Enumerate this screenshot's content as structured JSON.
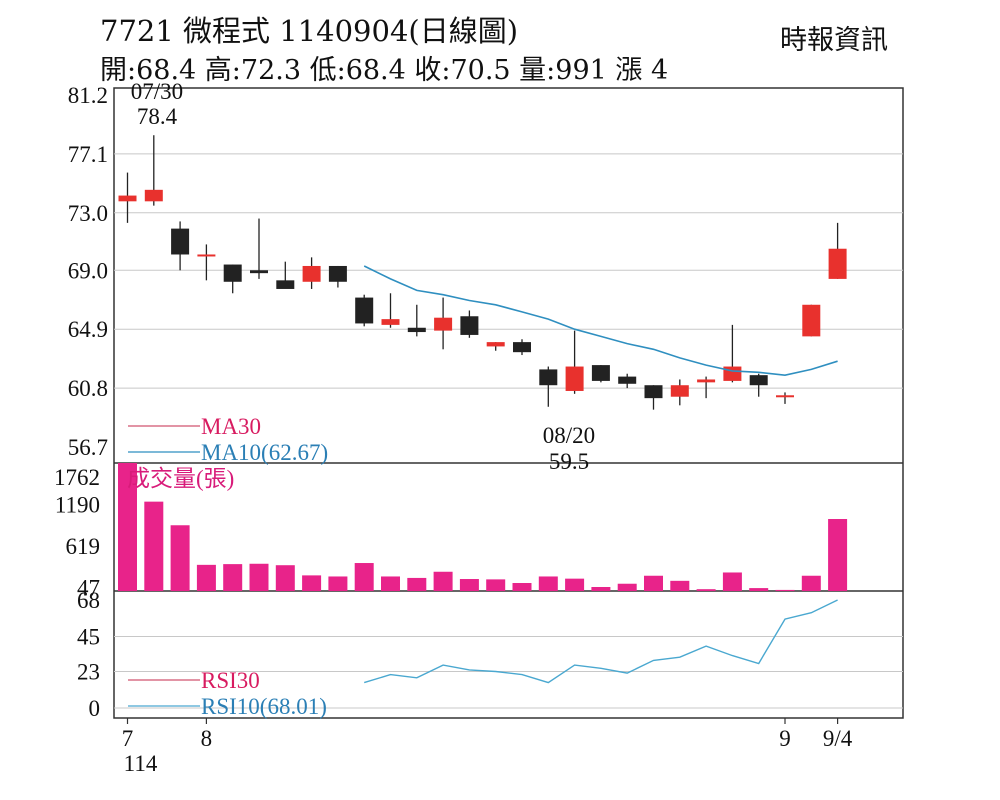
{
  "header": {
    "title": "7721  微程式 1140904(日線圖)",
    "ohlc": "開:68.4 高:72.3 低:68.4 收:70.5 量:991 漲 4",
    "source": "時報資訊"
  },
  "colors": {
    "up": "#e8312d",
    "down": "#222222",
    "ma10": "#2f8fc0",
    "ma30": "#d0536f",
    "volume": "#e8238a",
    "rsi10": "#4aa8d0",
    "rsi30": "#d0536f",
    "grid": "#c8c8c8",
    "volume_label": "#d81b7a",
    "legend_text_ma30": "#d81b60",
    "legend_text_ma10": "#2b7fb5"
  },
  "chart_data": [
    {
      "type": "candlestick",
      "name": "price",
      "y_ticks": [
        81.2,
        77.1,
        73.0,
        69.0,
        64.9,
        60.8,
        56.7
      ],
      "ylim": [
        56.7,
        81.2
      ],
      "candles": [
        {
          "o": 73.8,
          "h": 75.8,
          "l": 72.3,
          "c": 74.2
        },
        {
          "o": 73.8,
          "h": 78.4,
          "l": 73.5,
          "c": 74.6
        },
        {
          "o": 71.9,
          "h": 72.4,
          "l": 69.0,
          "c": 70.1
        },
        {
          "o": 70.0,
          "h": 70.8,
          "l": 68.3,
          "c": 70.1
        },
        {
          "o": 69.4,
          "h": 69.4,
          "l": 67.4,
          "c": 68.2
        },
        {
          "o": 69.0,
          "h": 72.6,
          "l": 68.4,
          "c": 68.8
        },
        {
          "o": 68.3,
          "h": 69.6,
          "l": 67.8,
          "c": 67.7
        },
        {
          "o": 68.2,
          "h": 69.9,
          "l": 67.7,
          "c": 69.3
        },
        {
          "o": 69.3,
          "h": 69.3,
          "l": 67.8,
          "c": 68.2
        },
        {
          "o": 67.1,
          "h": 67.3,
          "l": 65.1,
          "c": 65.3
        },
        {
          "o": 65.2,
          "h": 67.4,
          "l": 65.0,
          "c": 65.6
        },
        {
          "o": 65.0,
          "h": 66.6,
          "l": 64.4,
          "c": 64.7
        },
        {
          "o": 64.8,
          "h": 67.1,
          "l": 63.5,
          "c": 65.7
        },
        {
          "o": 65.8,
          "h": 66.2,
          "l": 64.3,
          "c": 64.5
        },
        {
          "o": 63.7,
          "h": 64.0,
          "l": 63.4,
          "c": 64.0
        },
        {
          "o": 64.0,
          "h": 64.2,
          "l": 63.1,
          "c": 63.3
        },
        {
          "o": 62.1,
          "h": 62.3,
          "l": 59.5,
          "c": 61.0
        },
        {
          "o": 60.6,
          "h": 64.8,
          "l": 60.4,
          "c": 62.3
        },
        {
          "o": 62.4,
          "h": 62.4,
          "l": 61.2,
          "c": 61.3
        },
        {
          "o": 61.6,
          "h": 61.8,
          "l": 60.8,
          "c": 61.1
        },
        {
          "o": 61.0,
          "h": 61.0,
          "l": 59.3,
          "c": 60.1
        },
        {
          "o": 60.2,
          "h": 61.4,
          "l": 59.6,
          "c": 61.0
        },
        {
          "o": 61.2,
          "h": 61.6,
          "l": 60.1,
          "c": 61.4
        },
        {
          "o": 61.3,
          "h": 65.2,
          "l": 61.2,
          "c": 62.3
        },
        {
          "o": 61.7,
          "h": 61.8,
          "l": 60.2,
          "c": 61.0
        },
        {
          "o": 60.3,
          "h": 60.5,
          "l": 59.7,
          "c": 60.3
        },
        {
          "o": 64.4,
          "h": 66.6,
          "l": 64.4,
          "c": 66.6
        },
        {
          "o": 68.4,
          "h": 72.3,
          "l": 68.4,
          "c": 70.5
        }
      ],
      "ma10": [
        null,
        null,
        null,
        null,
        null,
        null,
        null,
        null,
        null,
        69.3,
        68.4,
        67.6,
        67.3,
        66.9,
        66.6,
        66.1,
        65.6,
        64.9,
        64.4,
        63.9,
        63.5,
        62.9,
        62.4,
        62.0,
        61.9,
        61.7,
        62.1,
        62.67
      ],
      "legend": [
        {
          "label": "MA30",
          "series": "ma30"
        },
        {
          "label": "MA10(62.67)",
          "series": "ma10"
        }
      ],
      "annotations": [
        {
          "index": 1,
          "date": "07/30",
          "value": "78.4"
        },
        {
          "index": 16,
          "date": "08/20",
          "value": "59.5"
        }
      ]
    },
    {
      "type": "bar",
      "name": "volume",
      "label": "成交量(張)",
      "y_ticks": [
        1762,
        1190,
        619,
        47
      ],
      "ylim": [
        0,
        1762
      ],
      "values": [
        1762,
        1230,
        905,
        360,
        370,
        375,
        355,
        215,
        200,
        385,
        200,
        180,
        265,
        165,
        160,
        110,
        200,
        170,
        55,
        100,
        210,
        140,
        25,
        255,
        40,
        15,
        210,
        991
      ]
    },
    {
      "type": "line",
      "name": "rsi",
      "y_ticks": [
        68,
        45,
        23,
        0
      ],
      "ylim": [
        0,
        68
      ],
      "rsi10": [
        null,
        null,
        null,
        null,
        null,
        null,
        null,
        null,
        null,
        16,
        21,
        19,
        27,
        24,
        23,
        21,
        16,
        27,
        25,
        22,
        30,
        32,
        39,
        33,
        28,
        56,
        60,
        68.01
      ],
      "legend": [
        {
          "label": "RSI30",
          "series": "rsi30"
        },
        {
          "label": "RSI10(68.01)",
          "series": "rsi10"
        }
      ]
    }
  ],
  "x_axis": [
    {
      "index": 0,
      "label": "7",
      "sub": "114"
    },
    {
      "index": 3,
      "label": "8",
      "sub": ""
    },
    {
      "index": 25,
      "label": "9",
      "sub": ""
    },
    {
      "index": 27,
      "label": "9/4",
      "sub": ""
    }
  ]
}
